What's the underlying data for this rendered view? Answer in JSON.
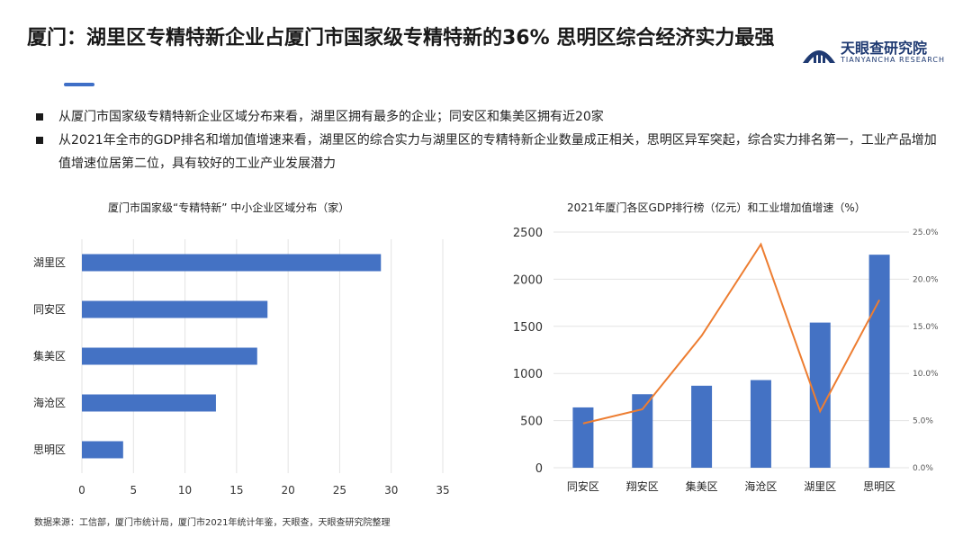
{
  "header": {
    "title": "厦门：湖里区专精特新企业占厦门市国家级专精特新的36% 思明区综合经济实力最强",
    "logo_name": "天眼查研究院",
    "logo_sub": "TIANYANCHA RESEARCH"
  },
  "bullets": [
    "从厦门市国家级专精特新企业区域分布来看，湖里区拥有最多的企业；同安区和集美区拥有近20家",
    "从2021年全市的GDP排名和增加值增速来看，湖里区的综合实力与湖里区的专精特新企业数量成正相关，思明区异军突起，综合实力排名第一，工业产品增加值增速位居第二位，具有较好的工业产业发展潜力"
  ],
  "footnote": "数据来源：工信部，厦门市统计局，厦门市2021年统计年鉴，天眼查，天眼查研究院整理",
  "colors": {
    "bar": "#4472c4",
    "line": "#ed7d31",
    "accent": "#3f6fc7"
  },
  "chart_data": [
    {
      "type": "bar",
      "orientation": "horizontal",
      "title": "厦门市国家级“专精特新” 中小企业区域分布（家）",
      "categories": [
        "湖里区",
        "同安区",
        "集美区",
        "海沧区",
        "思明区"
      ],
      "values": [
        29,
        18,
        17,
        13,
        4
      ],
      "xlim": [
        0,
        35
      ],
      "xticks": [
        "0",
        "5",
        "10",
        "15",
        "20",
        "25",
        "30",
        "35"
      ],
      "grid": true
    },
    {
      "type": "bar",
      "title": "2021年厦门各区GDP排行榜（亿元）和工业增加值增速（%）",
      "categories": [
        "同安区",
        "翔安区",
        "集美区",
        "海沧区",
        "湖里区",
        "思明区"
      ],
      "series": [
        {
          "type": "bar",
          "axis": "left",
          "values": [
            640,
            780,
            870,
            930,
            1540,
            2260
          ]
        },
        {
          "type": "line",
          "axis": "right",
          "values": [
            4.7,
            6.2,
            14.0,
            23.7,
            6.0,
            17.8
          ]
        }
      ],
      "ylim_left": [
        0,
        2500
      ],
      "yticks_left": [
        "0",
        "500",
        "1000",
        "1500",
        "2000",
        "2500"
      ],
      "ylim_right": [
        0,
        25
      ],
      "yticks_right": [
        "0.0%",
        "5.0%",
        "10.0%",
        "15.0%",
        "20.0%",
        "25.0%"
      ],
      "grid": true
    }
  ]
}
